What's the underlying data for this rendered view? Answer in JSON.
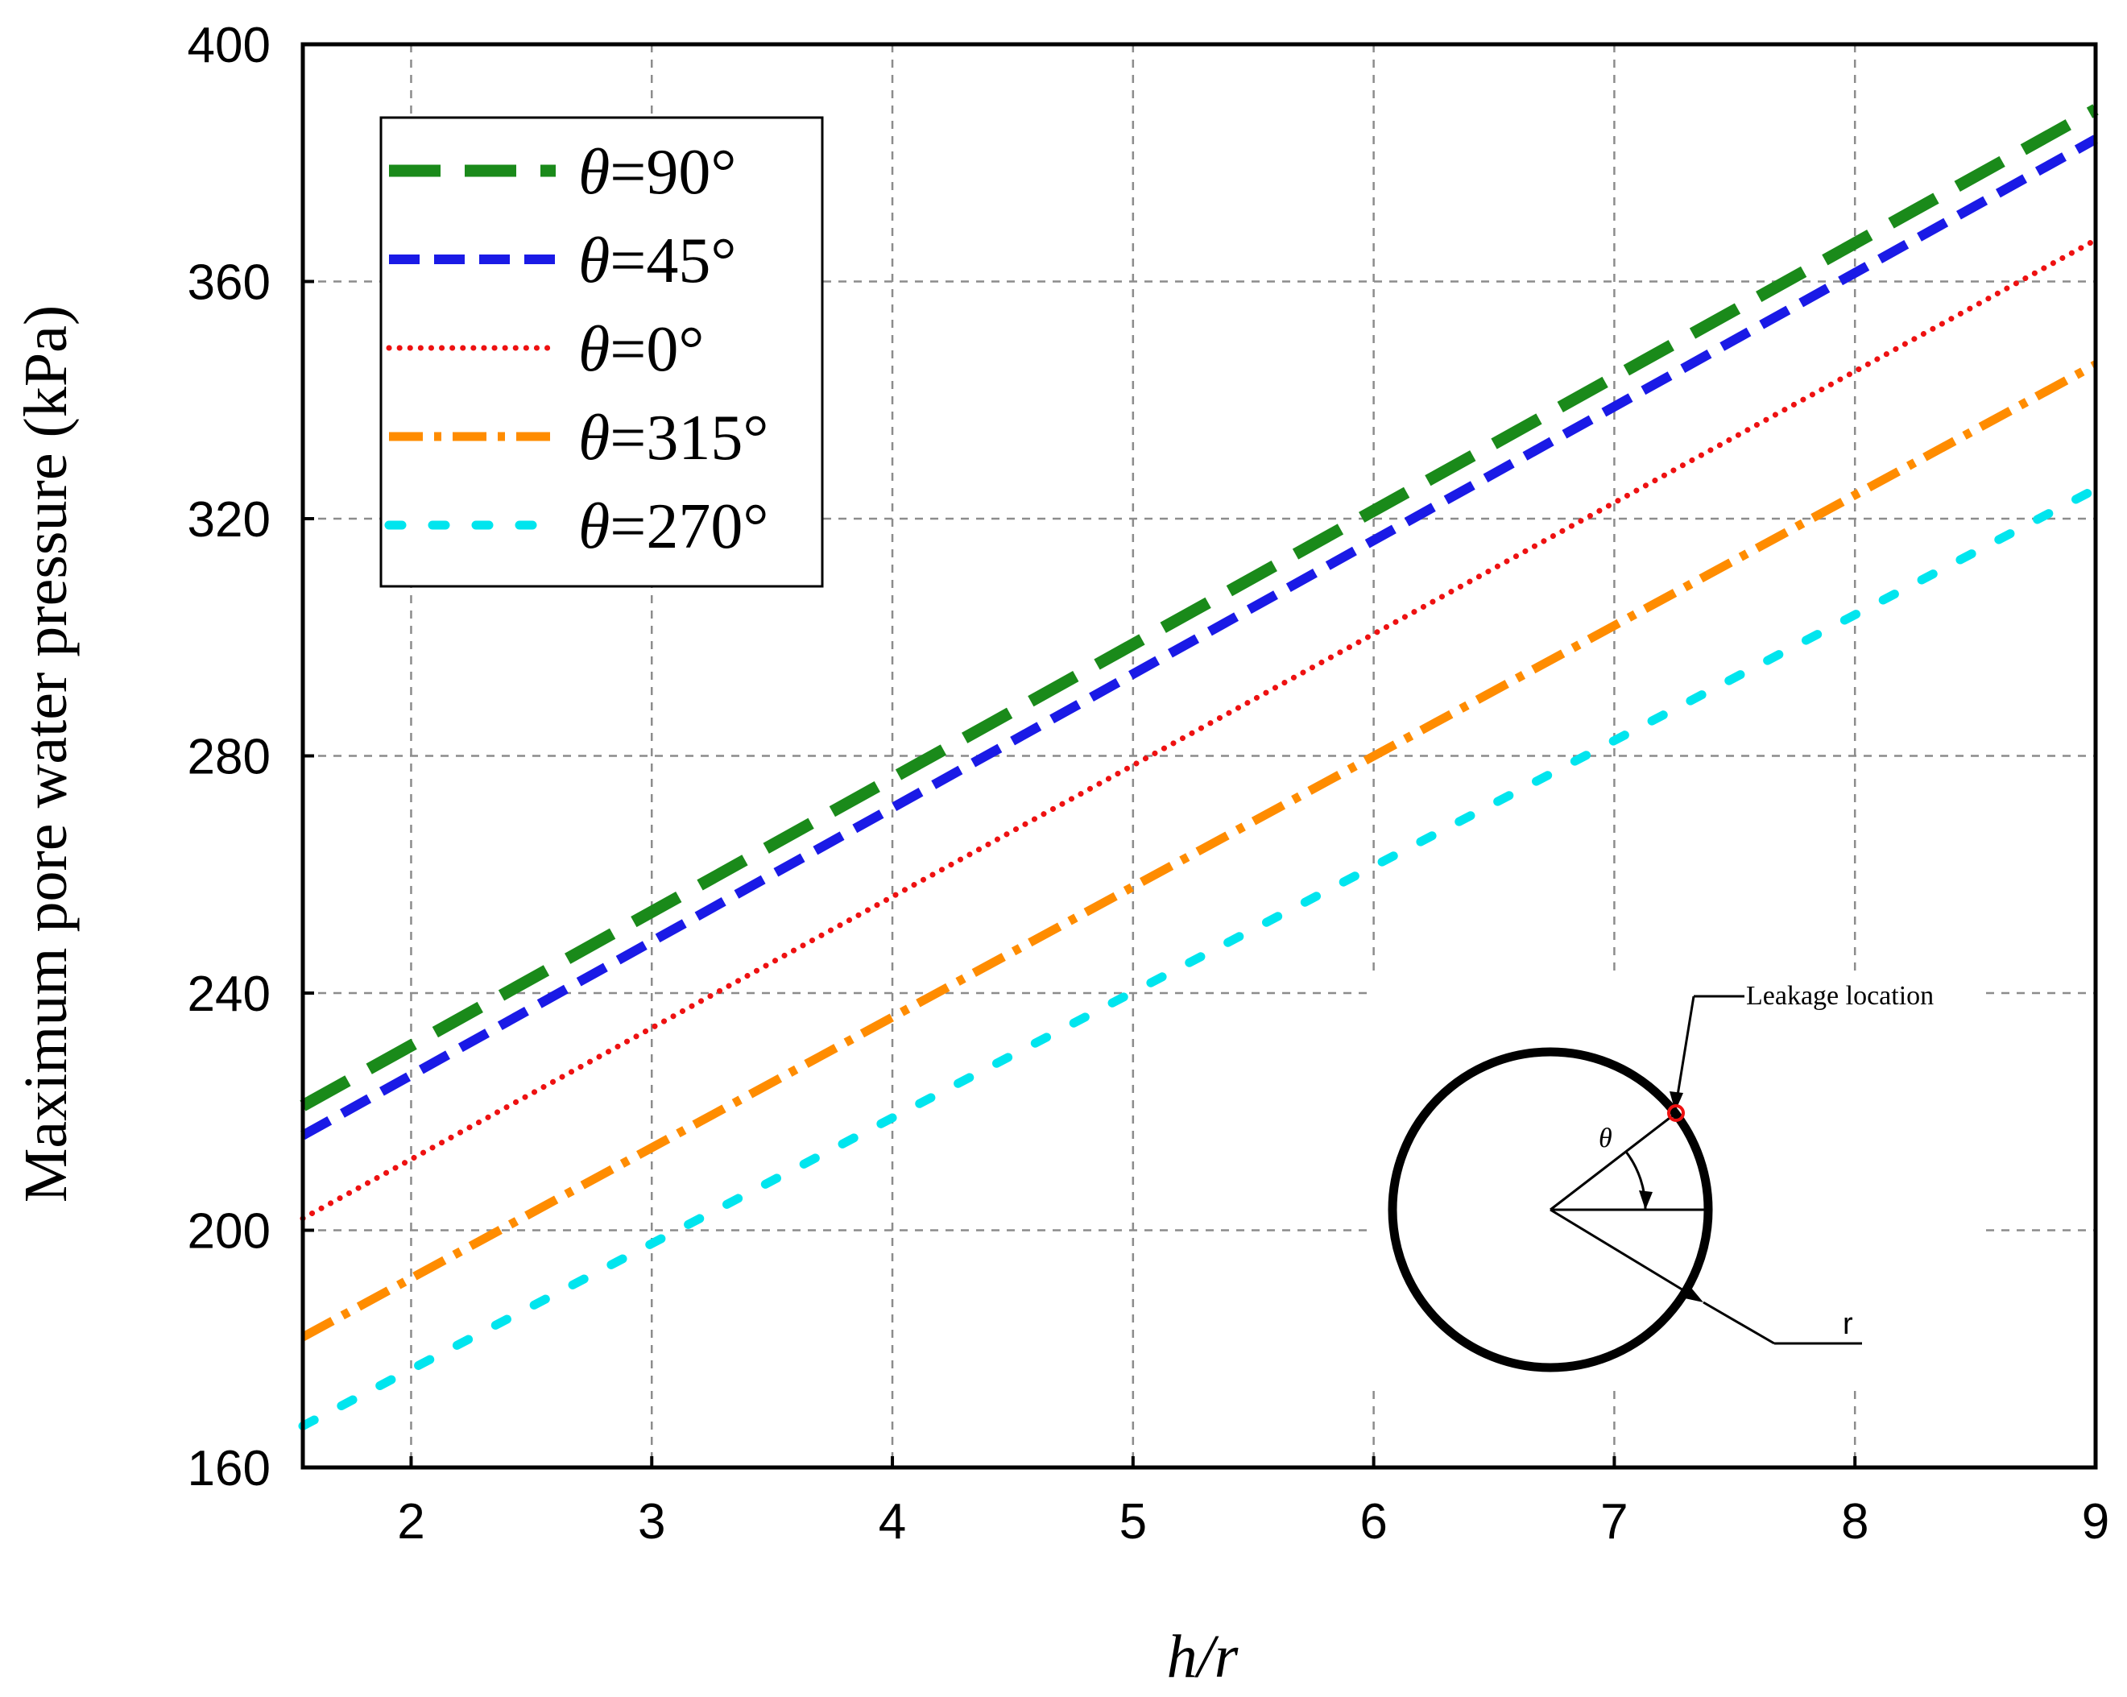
{
  "chart_data": {
    "type": "line",
    "title": "",
    "xlabel": "h/r",
    "ylabel": "Maximum pore water pressure (kPa)",
    "xlim": [
      1.55,
      9
    ],
    "ylim": [
      160,
      400
    ],
    "xticks": [
      2,
      3,
      4,
      5,
      6,
      7,
      8,
      9
    ],
    "yticks": [
      160,
      200,
      240,
      280,
      320,
      360,
      400
    ],
    "grid": true,
    "legend_position": "top-left",
    "x": [
      1.55,
      9
    ],
    "series": [
      {
        "name": "θ=90°",
        "label_var": "θ",
        "label_value": "=90°",
        "values": [
          221,
          389
        ],
        "color": "#1a8a1a",
        "style": "long-dash"
      },
      {
        "name": "θ=45°",
        "label_var": "θ",
        "label_value": "=45°",
        "values": [
          216,
          384
        ],
        "color": "#1a1ae6",
        "style": "dash"
      },
      {
        "name": "θ=0°",
        "label_var": "θ",
        "label_value": "=0°",
        "values": [
          202,
          367
        ],
        "color": "#ee1111",
        "style": "dot"
      },
      {
        "name": "θ=315°",
        "label_var": "θ",
        "label_value": "=315°",
        "values": [
          182,
          346
        ],
        "color": "#ff8c00",
        "style": "dash-dot"
      },
      {
        "name": "θ=270°",
        "label_var": "θ",
        "label_value": "=270°",
        "values": [
          167,
          325
        ],
        "color": "#00e5ee",
        "style": "sparse-dash"
      }
    ],
    "inset": {
      "leakage_label": "Leakage location",
      "angle_label": "θ",
      "radius_label": "r",
      "marker_color": "#ee1111"
    }
  }
}
